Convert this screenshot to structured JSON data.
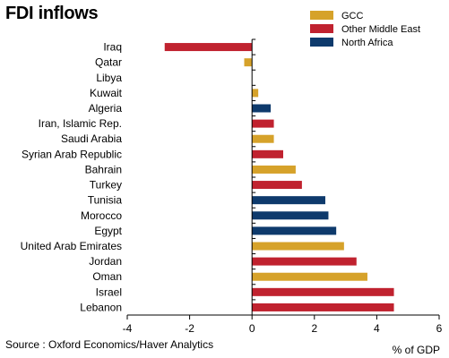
{
  "chart_data": {
    "type": "bar",
    "orientation": "horizontal",
    "title": "FDI inflows",
    "xlabel": "% of GDP",
    "source": "Source : Oxford Economics/Haver Analytics",
    "xlim": [
      -4,
      6
    ],
    "xticks": [
      "-4",
      "-2",
      "0",
      "2",
      "4",
      "6"
    ],
    "legend_position": "top-right",
    "series": [
      {
        "name": "GCC",
        "color": "#D6A22A"
      },
      {
        "name": "Other Middle East",
        "color": "#C0222F"
      },
      {
        "name": "North Africa",
        "color": "#0E3A6C"
      }
    ],
    "bars": [
      {
        "category": "Iraq",
        "value": -2.8,
        "group": "Other Middle East"
      },
      {
        "category": "Qatar",
        "value": -0.25,
        "group": "GCC"
      },
      {
        "category": "Libya",
        "value": 0.0,
        "group": "North Africa"
      },
      {
        "category": "Kuwait",
        "value": 0.2,
        "group": "GCC"
      },
      {
        "category": "Algeria",
        "value": 0.6,
        "group": "North Africa"
      },
      {
        "category": "Iran, Islamic Rep.",
        "value": 0.7,
        "group": "Other Middle East"
      },
      {
        "category": "Saudi Arabia",
        "value": 0.7,
        "group": "GCC"
      },
      {
        "category": "Syrian Arab Republic",
        "value": 1.0,
        "group": "Other Middle East"
      },
      {
        "category": "Bahrain",
        "value": 1.4,
        "group": "GCC"
      },
      {
        "category": "Turkey",
        "value": 1.6,
        "group": "Other Middle East"
      },
      {
        "category": "Tunisia",
        "value": 2.35,
        "group": "North Africa"
      },
      {
        "category": "Morocco",
        "value": 2.45,
        "group": "North Africa"
      },
      {
        "category": "Egypt",
        "value": 2.7,
        "group": "North Africa"
      },
      {
        "category": "United Arab Emirates",
        "value": 2.95,
        "group": "GCC"
      },
      {
        "category": "Jordan",
        "value": 3.35,
        "group": "Other Middle East"
      },
      {
        "category": "Oman",
        "value": 3.7,
        "group": "GCC"
      },
      {
        "category": "Israel",
        "value": 4.55,
        "group": "Other Middle East"
      },
      {
        "category": "Lebanon",
        "value": 4.55,
        "group": "Other Middle East"
      }
    ]
  }
}
